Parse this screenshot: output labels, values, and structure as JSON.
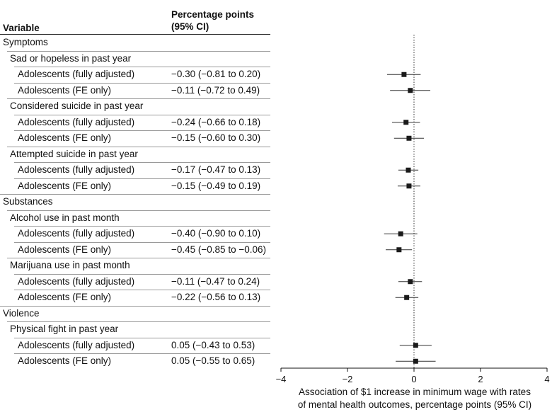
{
  "table": {
    "col_variable": "Variable",
    "col_estimate_line1": "Percentage points",
    "col_estimate_line2": "(95% CI)"
  },
  "rows": [
    {
      "label": "Symptoms",
      "level": 0,
      "estimate": ""
    },
    {
      "label": "Sad or hopeless in past year",
      "level": 1,
      "estimate": ""
    },
    {
      "label": "Adolescents (fully adjusted)",
      "level": 2,
      "estimate": "−0.30 (−0.81 to 0.20)"
    },
    {
      "label": "Adolescents (FE only)",
      "level": 2,
      "estimate": "−0.11 (−0.72 to 0.49)"
    },
    {
      "label": "Considered suicide in past year",
      "level": 1,
      "estimate": ""
    },
    {
      "label": "Adolescents (fully adjusted)",
      "level": 2,
      "estimate": "−0.24 (−0.66 to 0.18)"
    },
    {
      "label": "Adolescents (FE only)",
      "level": 2,
      "estimate": "−0.15 (−0.60 to 0.30)"
    },
    {
      "label": "Attempted suicide in past year",
      "level": 1,
      "estimate": ""
    },
    {
      "label": "Adolescents (fully adjusted)",
      "level": 2,
      "estimate": "−0.17 (−0.47 to 0.13)"
    },
    {
      "label": "Adolescents (FE only)",
      "level": 2,
      "estimate": "−0.15 (−0.49 to 0.19)"
    },
    {
      "label": "Substances",
      "level": 0,
      "estimate": ""
    },
    {
      "label": "Alcohol use in past month",
      "level": 1,
      "estimate": ""
    },
    {
      "label": "Adolescents (fully adjusted)",
      "level": 2,
      "estimate": "−0.40 (−0.90 to 0.10)"
    },
    {
      "label": "Adolescents (FE only)",
      "level": 2,
      "estimate": "−0.45 (−0.85 to −0.06)"
    },
    {
      "label": "Marijuana use in past month",
      "level": 1,
      "estimate": ""
    },
    {
      "label": "Adolescents (fully adjusted)",
      "level": 2,
      "estimate": "−0.11 (−0.47 to 0.24)"
    },
    {
      "label": "Adolescents (FE only)",
      "level": 2,
      "estimate": "−0.22 (−0.56 to 0.13)"
    },
    {
      "label": "Violence",
      "level": 0,
      "estimate": ""
    },
    {
      "label": "Physical fight in past year",
      "level": 1,
      "estimate": ""
    },
    {
      "label": "Adolescents (fully adjusted)",
      "level": 2,
      "estimate": "0.05 (−0.43 to 0.53)"
    },
    {
      "label": "Adolescents (FE only)",
      "level": 2,
      "estimate": "0.05 (−0.55 to 0.65)"
    }
  ],
  "chart_data": {
    "type": "forest",
    "xlabel_line1": "Association of $1 increase in minimum wage with rates",
    "xlabel_line2": "of mental health outcomes, percentage points (95% CI)",
    "xlim": [
      -4,
      4
    ],
    "xticks": [
      -4,
      -2,
      0,
      2,
      4
    ],
    "xtick_labels": [
      "−4",
      "−2",
      "0",
      "2",
      "4"
    ],
    "reference_line": 0,
    "points": [
      {
        "row": 2,
        "estimate": -0.3,
        "lower": -0.81,
        "upper": 0.2
      },
      {
        "row": 3,
        "estimate": -0.11,
        "lower": -0.72,
        "upper": 0.49
      },
      {
        "row": 5,
        "estimate": -0.24,
        "lower": -0.66,
        "upper": 0.18
      },
      {
        "row": 6,
        "estimate": -0.15,
        "lower": -0.6,
        "upper": 0.3
      },
      {
        "row": 8,
        "estimate": -0.17,
        "lower": -0.47,
        "upper": 0.13
      },
      {
        "row": 9,
        "estimate": -0.15,
        "lower": -0.49,
        "upper": 0.19
      },
      {
        "row": 12,
        "estimate": -0.4,
        "lower": -0.9,
        "upper": 0.1
      },
      {
        "row": 13,
        "estimate": -0.45,
        "lower": -0.85,
        "upper": -0.06
      },
      {
        "row": 15,
        "estimate": -0.11,
        "lower": -0.47,
        "upper": 0.24
      },
      {
        "row": 16,
        "estimate": -0.22,
        "lower": -0.56,
        "upper": 0.13
      },
      {
        "row": 19,
        "estimate": 0.05,
        "lower": -0.43,
        "upper": 0.53
      },
      {
        "row": 20,
        "estimate": 0.05,
        "lower": -0.55,
        "upper": 0.65
      }
    ],
    "colors": {
      "marker": "#1a1a1a",
      "ci_line": "#333333",
      "ref_line": "#333333",
      "axis": "#111111"
    }
  }
}
